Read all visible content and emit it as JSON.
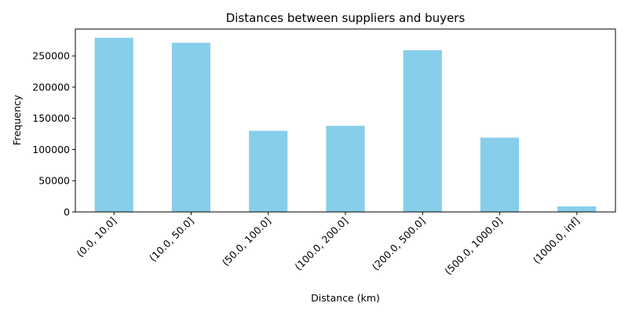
{
  "chart_data": {
    "type": "bar",
    "title": "Distances between suppliers and buyers",
    "xlabel": "Distance (km)",
    "ylabel": "Frequency",
    "categories": [
      "(0.0, 10.0]",
      "(10.0, 50.0]",
      "(50.0, 100.0]",
      "(100.0, 200.0]",
      "(200.0, 500.0]",
      "(500.0, 1000.0]",
      "(1000.0, inf]"
    ],
    "values": [
      279000,
      271000,
      130000,
      138000,
      259000,
      119000,
      9000
    ],
    "ylim": [
      0,
      293000
    ],
    "yticks": [
      0,
      50000,
      100000,
      150000,
      200000,
      250000
    ],
    "bar_color": "#87CEEB",
    "grid": false,
    "legend": "none"
  }
}
